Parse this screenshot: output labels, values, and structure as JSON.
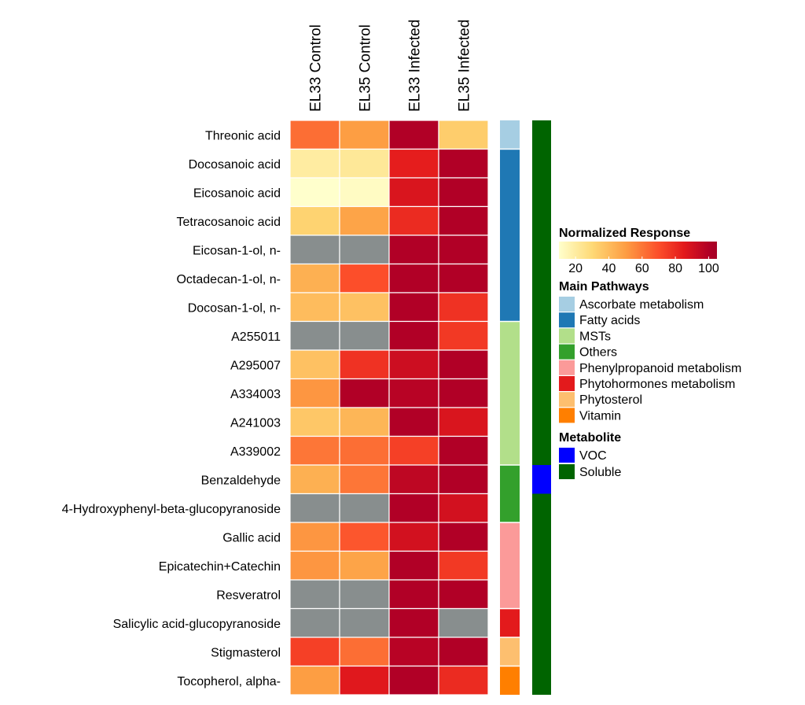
{
  "chart_data": {
    "type": "heatmap",
    "columns": [
      "EL33 Control",
      "EL35 Control",
      "EL33 Infected",
      "EL35 Infected"
    ],
    "rows": [
      {
        "name": "Threonic acid",
        "values": [
          62,
          50,
          100,
          34
        ],
        "pathway": "Ascorbate metabolism",
        "metabolite": "Soluble"
      },
      {
        "name": "Docosanoic acid",
        "values": [
          20,
          22,
          84,
          100
        ],
        "pathway": "Fatty acids",
        "metabolite": "Soluble"
      },
      {
        "name": "Eicosanoic acid",
        "values": [
          10,
          12,
          88,
          100
        ],
        "pathway": "Fatty acids",
        "metabolite": "Soluble"
      },
      {
        "name": "Tetracosanoic acid",
        "values": [
          32,
          48,
          80,
          100
        ],
        "pathway": "Fatty acids",
        "metabolite": "Soluble"
      },
      {
        "name": "Eicosan-1-ol, n-",
        "values": [
          null,
          null,
          100,
          100
        ],
        "pathway": "Fatty acids",
        "metabolite": "Soluble"
      },
      {
        "name": "Octadecan-1-ol, n-",
        "values": [
          44,
          70,
          100,
          100
        ],
        "pathway": "Fatty acids",
        "metabolite": "Soluble"
      },
      {
        "name": "Docosan-1-ol, n-",
        "values": [
          40,
          38,
          100,
          78
        ],
        "pathway": "Fatty acids",
        "metabolite": "Soluble"
      },
      {
        "name": "A255011",
        "values": [
          null,
          null,
          100,
          76
        ],
        "pathway": "MSTs",
        "metabolite": "Soluble"
      },
      {
        "name": "A295007",
        "values": [
          38,
          78,
          92,
          100
        ],
        "pathway": "MSTs",
        "metabolite": "Soluble"
      },
      {
        "name": "A334003",
        "values": [
          52,
          100,
          98,
          100
        ],
        "pathway": "MSTs",
        "metabolite": "Soluble"
      },
      {
        "name": "A241003",
        "values": [
          36,
          42,
          100,
          88
        ],
        "pathway": "MSTs",
        "metabolite": "Soluble"
      },
      {
        "name": "A339002",
        "values": [
          60,
          62,
          74,
          100
        ],
        "pathway": "MSTs",
        "metabolite": "Soluble"
      },
      {
        "name": "Benzaldehyde",
        "values": [
          44,
          60,
          96,
          100
        ],
        "pathway": "Others",
        "metabolite": "VOC"
      },
      {
        "name": "4-Hydroxyphenyl-beta-glucopyranoside",
        "values": [
          null,
          null,
          100,
          90
        ],
        "pathway": "Others",
        "metabolite": "Soluble"
      },
      {
        "name": "Gallic acid",
        "values": [
          52,
          68,
          90,
          100
        ],
        "pathway": "Phenylpropanoid metabolism",
        "metabolite": "Soluble"
      },
      {
        "name": "Epicatechin+Catechin",
        "values": [
          52,
          48,
          100,
          76
        ],
        "pathway": "Phenylpropanoid metabolism",
        "metabolite": "Soluble"
      },
      {
        "name": "Resveratrol",
        "values": [
          null,
          null,
          100,
          100
        ],
        "pathway": "Phenylpropanoid metabolism",
        "metabolite": "Soluble"
      },
      {
        "name": "Salicylic acid-glucopyranoside",
        "values": [
          null,
          null,
          100,
          null
        ],
        "pathway": "Phytohormones metabolism",
        "metabolite": "Soluble"
      },
      {
        "name": "Stigmasterol",
        "values": [
          74,
          62,
          98,
          100
        ],
        "pathway": "Phytosterol",
        "metabolite": "Soluble"
      },
      {
        "name": "Tocopherol, alpha-",
        "values": [
          50,
          86,
          100,
          80
        ],
        "pathway": "Vitamin",
        "metabolite": "Soluble"
      }
    ],
    "missing_color": "#888e8e",
    "colorscale": {
      "title": "Normalized Response",
      "range": [
        10,
        105
      ],
      "ticks": [
        20,
        40,
        60,
        80,
        100
      ],
      "stops": [
        {
          "value": 10,
          "color": "#ffffcc"
        },
        {
          "value": 30,
          "color": "#fed976"
        },
        {
          "value": 50,
          "color": "#fd9e43"
        },
        {
          "value": 70,
          "color": "#fc4e2a"
        },
        {
          "value": 85,
          "color": "#e31a1c"
        },
        {
          "value": 100,
          "color": "#b10026"
        },
        {
          "value": 105,
          "color": "#a50026"
        }
      ]
    },
    "pathway_legend": {
      "title": "Main Pathways",
      "items": [
        {
          "label": "Ascorbate metabolism",
          "color": "#a6cee3"
        },
        {
          "label": "Fatty acids",
          "color": "#1f78b4"
        },
        {
          "label": "MSTs",
          "color": "#b2df8a"
        },
        {
          "label": "Others",
          "color": "#33a02c"
        },
        {
          "label": "Phenylpropanoid metabolism",
          "color": "#fb9a99"
        },
        {
          "label": "Phytohormones metabolism",
          "color": "#e31a1c"
        },
        {
          "label": "Phytosterol",
          "color": "#fdbf6f"
        },
        {
          "label": "Vitamin",
          "color": "#ff7f00"
        }
      ]
    },
    "metabolite_legend": {
      "title": "Metabolite",
      "items": [
        {
          "label": "VOC",
          "color": "#0000ff"
        },
        {
          "label": "Soluble",
          "color": "#006400"
        }
      ]
    }
  }
}
